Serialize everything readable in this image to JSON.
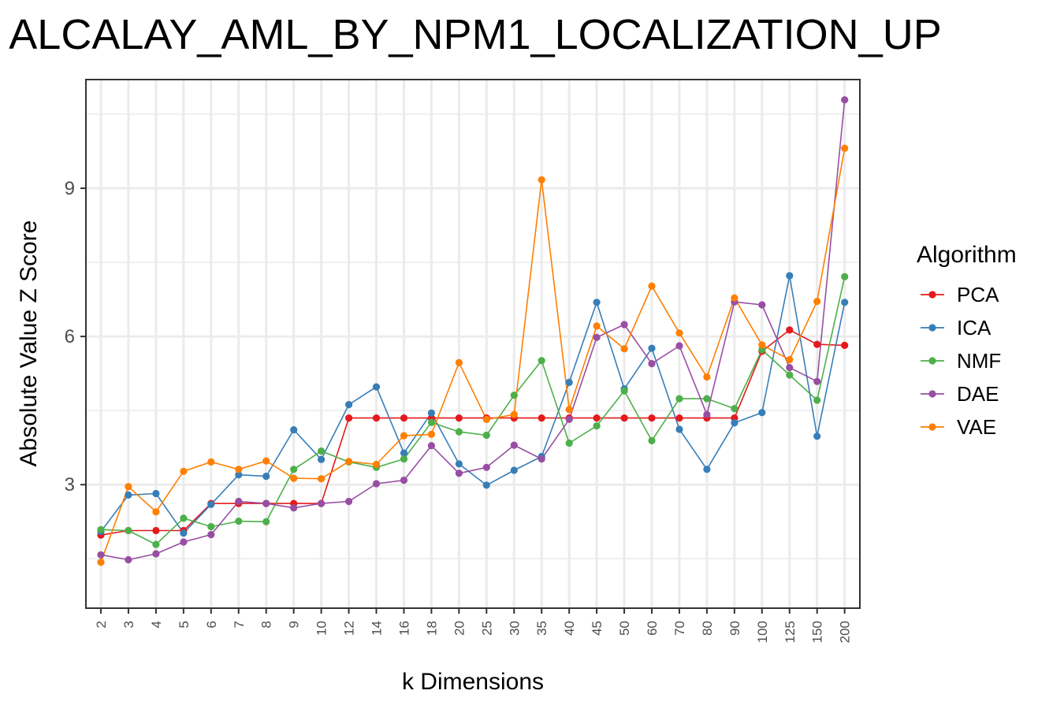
{
  "chart_data": {
    "type": "line",
    "title": "ALCALAY_AML_BY_NPM1_LOCALIZATION_UP",
    "xlabel": "k Dimensions",
    "ylabel": "Absolute Value Z Score",
    "categories": [
      "2",
      "3",
      "4",
      "5",
      "6",
      "7",
      "8",
      "9",
      "10",
      "12",
      "14",
      "16",
      "18",
      "20",
      "25",
      "30",
      "35",
      "40",
      "45",
      "50",
      "60",
      "70",
      "80",
      "90",
      "100",
      "125",
      "150",
      "200"
    ],
    "ylim": [
      0.5,
      11.2
    ],
    "yticks": [
      3,
      6,
      9
    ],
    "y_tick_labels": [
      "3",
      "6",
      "9"
    ],
    "grid": true,
    "legend": {
      "title": "Algorithm",
      "position": "right"
    },
    "series": [
      {
        "name": "PCA",
        "color": "#e41a1c",
        "values": [
          1.98,
          2.07,
          2.07,
          2.07,
          2.62,
          2.62,
          2.62,
          2.62,
          2.62,
          4.35,
          4.35,
          4.35,
          4.35,
          4.35,
          4.35,
          4.35,
          4.35,
          4.35,
          4.35,
          4.35,
          4.35,
          4.35,
          4.35,
          4.35,
          5.7,
          6.13,
          5.84,
          5.82
        ]
      },
      {
        "name": "ICA",
        "color": "#377eb8",
        "values": [
          2.05,
          2.79,
          2.82,
          2.02,
          2.6,
          3.2,
          3.17,
          4.11,
          3.51,
          4.62,
          4.98,
          3.64,
          4.45,
          3.42,
          2.99,
          3.29,
          3.57,
          5.07,
          6.69,
          4.94,
          5.76,
          4.12,
          3.31,
          4.25,
          4.46,
          7.23,
          3.98,
          6.69
        ]
      },
      {
        "name": "NMF",
        "color": "#4daf4a",
        "values": [
          2.09,
          2.07,
          1.79,
          2.32,
          2.15,
          2.26,
          2.25,
          3.31,
          3.68,
          3.46,
          3.35,
          3.52,
          4.26,
          4.07,
          4.0,
          4.81,
          5.51,
          3.84,
          4.19,
          4.9,
          3.89,
          4.74,
          4.74,
          4.54,
          5.73,
          5.22,
          4.71,
          7.21
        ]
      },
      {
        "name": "DAE",
        "color": "#984ea3",
        "values": [
          1.58,
          1.48,
          1.6,
          1.84,
          1.99,
          2.66,
          2.62,
          2.53,
          2.62,
          2.66,
          3.02,
          3.09,
          3.79,
          3.23,
          3.35,
          3.8,
          3.52,
          4.32,
          5.98,
          6.24,
          5.45,
          5.81,
          4.42,
          6.7,
          6.64,
          5.37,
          5.09,
          10.79
        ]
      },
      {
        "name": "VAE",
        "color": "#ff7f00",
        "values": [
          1.43,
          2.96,
          2.45,
          3.27,
          3.46,
          3.31,
          3.48,
          3.13,
          3.12,
          3.47,
          3.41,
          3.99,
          4.02,
          5.47,
          4.32,
          4.42,
          9.17,
          4.52,
          6.21,
          5.75,
          7.02,
          6.07,
          5.18,
          6.78,
          5.83,
          5.53,
          6.71,
          9.81
        ]
      }
    ]
  }
}
